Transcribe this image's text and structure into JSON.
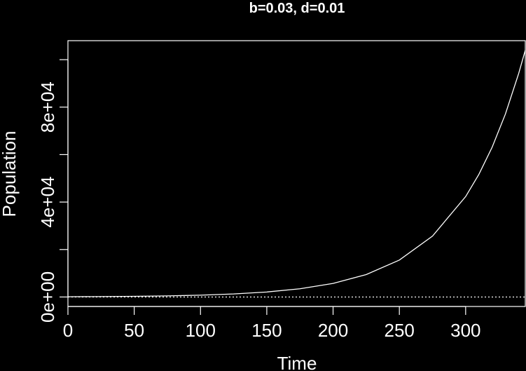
{
  "chart_data": {
    "type": "line",
    "title": "b=0.03, d=0.01",
    "xlabel": "Time",
    "ylabel": "Population",
    "xlim": [
      0,
      345
    ],
    "ylim": [
      -4000,
      108000
    ],
    "x_ticks": [
      0,
      50,
      100,
      150,
      200,
      250,
      300
    ],
    "x_tick_labels": [
      "0",
      "50",
      "100",
      "150",
      "200",
      "250",
      "300"
    ],
    "y_ticks": [
      0,
      20000,
      40000,
      60000,
      80000,
      100000
    ],
    "y_tick_labels": [
      "0e+00",
      "",
      "4e+04",
      "",
      "8e+04",
      ""
    ],
    "grid": false,
    "legend": "none",
    "colors": {
      "background": "#000000",
      "foreground": "#ffffff"
    },
    "reference_line": {
      "y": 0,
      "style": "dotted"
    },
    "series": [
      {
        "x": [
          0,
          25,
          50,
          75,
          100,
          125,
          150,
          175,
          200,
          225,
          250,
          275,
          300,
          310,
          320,
          330,
          340,
          345
        ],
        "values": [
          105,
          173,
          285,
          470,
          775,
          1278,
          2106,
          3474,
          5727,
          9442,
          15567,
          25665,
          42312,
          51680,
          63120,
          77100,
          94170,
          104000
        ]
      }
    ]
  }
}
